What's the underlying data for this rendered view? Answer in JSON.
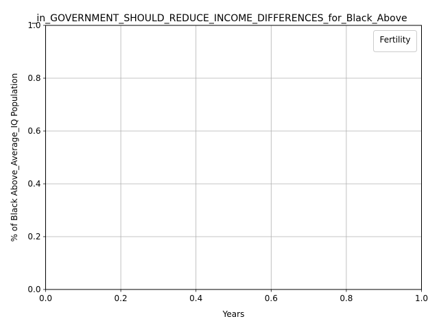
{
  "chart_data": {
    "type": "line",
    "title": "_in_GOVERNMENT_SHOULD_REDUCE_INCOME_DIFFERENCES_for_Black_Above",
    "xlabel": "Years",
    "ylabel": "% of Black Above_Average_IQ Population",
    "xlim": [
      0.0,
      1.0
    ],
    "ylim": [
      0.0,
      1.0
    ],
    "x_ticks": [
      "0.0",
      "0.2",
      "0.4",
      "0.6",
      "0.8",
      "1.0"
    ],
    "y_ticks": [
      "0.0",
      "0.2",
      "0.4",
      "0.6",
      "0.8",
      "1.0"
    ],
    "grid": true,
    "legend": {
      "title": "Fertility",
      "placement": "top-right",
      "entries": []
    },
    "series": []
  },
  "colors": {
    "grid": "#b0b0b0",
    "axes": "#000000",
    "background": "#ffffff",
    "legend_border": "#cccccc"
  }
}
